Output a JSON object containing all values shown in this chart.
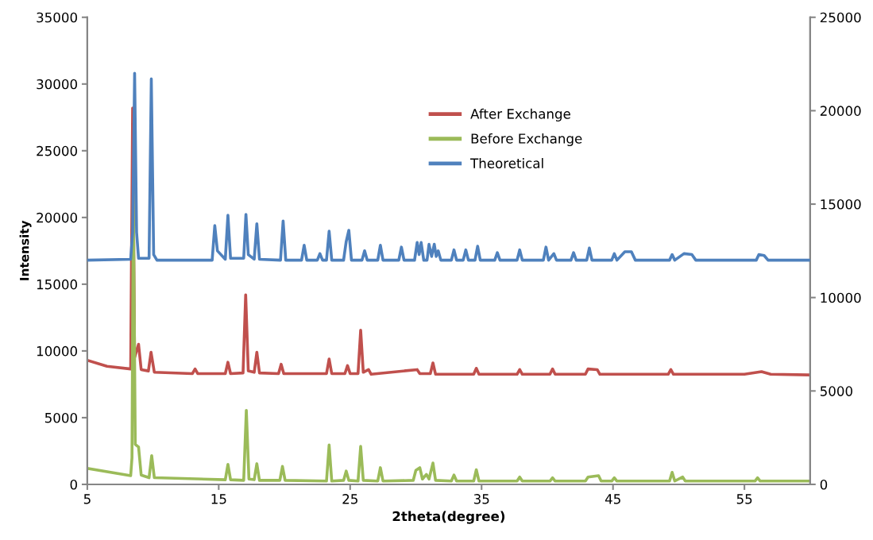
{
  "chart_data": {
    "type": "line",
    "xlabel": "2theta(degree)",
    "ylabel": "Intensity",
    "xlim": [
      5,
      60
    ],
    "xticks": [
      5,
      15,
      25,
      35,
      45,
      55
    ],
    "ylim": [
      0,
      35000
    ],
    "yticks": [
      0,
      5000,
      10000,
      15000,
      20000,
      25000,
      30000,
      35000
    ],
    "y2lim": [
      0,
      25000
    ],
    "y2ticks": [
      0,
      5000,
      10000,
      15000,
      20000,
      25000
    ],
    "legend": "top",
    "marker": "none",
    "line_style": "solid",
    "series": [
      {
        "name": "After Exchange",
        "color": "#c0504d",
        "axis": "y",
        "x": [
          5,
          6.5,
          8.3,
          8.45,
          8.6,
          8.9,
          9.1,
          9.65,
          9.85,
          10.1,
          13.0,
          13.2,
          13.4,
          15.5,
          15.7,
          15.9,
          16.85,
          17.05,
          17.25,
          17.7,
          17.9,
          18.1,
          19.55,
          19.75,
          19.95,
          23.2,
          23.4,
          23.6,
          24.6,
          24.8,
          25.0,
          25.6,
          25.8,
          26.0,
          26.4,
          26.6,
          30.1,
          30.3,
          31.1,
          31.3,
          31.5,
          34.4,
          34.6,
          34.8,
          37.7,
          37.9,
          38.1,
          40.2,
          40.4,
          40.6,
          42.9,
          43.1,
          43.8,
          44,
          49.2,
          49.4,
          49.6,
          55,
          56.3,
          57,
          60
        ],
        "values": [
          9300,
          8850,
          8650,
          28200,
          9500,
          10500,
          8600,
          8500,
          9900,
          8400,
          8300,
          8650,
          8300,
          8300,
          9150,
          8300,
          8350,
          14200,
          8500,
          8400,
          9900,
          8350,
          8300,
          9000,
          8300,
          8300,
          9400,
          8300,
          8300,
          8900,
          8300,
          8300,
          11550,
          8400,
          8600,
          8250,
          8600,
          8300,
          8300,
          9100,
          8250,
          8250,
          8700,
          8250,
          8250,
          8600,
          8250,
          8250,
          8650,
          8250,
          8250,
          8650,
          8600,
          8250,
          8250,
          8600,
          8250,
          8250,
          8450,
          8250,
          8200
        ]
      },
      {
        "name": "Before Exchange",
        "color": "#9bbb59",
        "axis": "y",
        "x": [
          5,
          8.3,
          8.4,
          8.5,
          8.65,
          8.9,
          9.1,
          9.7,
          9.9,
          10.1,
          15.5,
          15.7,
          15.9,
          16.9,
          17.1,
          17.3,
          17.7,
          17.9,
          18.1,
          19.65,
          19.85,
          20.05,
          23.2,
          23.4,
          23.6,
          24.5,
          24.7,
          24.9,
          25.6,
          25.8,
          26.0,
          27.1,
          27.3,
          27.5,
          29.8,
          30.0,
          30.3,
          30.5,
          30.8,
          31.0,
          31.3,
          31.5,
          32.7,
          32.9,
          33.1,
          34.4,
          34.6,
          34.8,
          37.7,
          37.9,
          38.1,
          40.2,
          40.4,
          40.6,
          42.9,
          43.1,
          43.9,
          44.1,
          44.9,
          45.1,
          45.3,
          49.3,
          49.5,
          49.7,
          50.3,
          50.5,
          55.8,
          56,
          56.2,
          60
        ],
        "values": [
          1200,
          650,
          2000,
          21900,
          3000,
          2800,
          700,
          500,
          2150,
          500,
          350,
          1500,
          350,
          300,
          5550,
          400,
          350,
          1550,
          300,
          300,
          1350,
          300,
          250,
          2950,
          250,
          300,
          1000,
          300,
          250,
          2850,
          300,
          250,
          1250,
          250,
          300,
          1050,
          1250,
          400,
          750,
          400,
          1600,
          300,
          250,
          700,
          250,
          250,
          1100,
          250,
          250,
          550,
          250,
          250,
          500,
          250,
          250,
          550,
          650,
          250,
          250,
          500,
          250,
          250,
          900,
          250,
          550,
          250,
          250,
          500,
          250,
          250
        ]
      },
      {
        "name": "Theoretical",
        "color": "#4f81bd",
        "axis": "y2",
        "x": [
          5,
          8.3,
          8.45,
          8.6,
          8.75,
          8.9,
          9.7,
          9.87,
          10.05,
          10.3,
          14.5,
          14.7,
          14.9,
          15.5,
          15.7,
          15.9,
          16.9,
          17.07,
          17.25,
          17.7,
          17.9,
          18.1,
          19.7,
          19.9,
          20.1,
          21.3,
          21.5,
          21.7,
          22.5,
          22.7,
          22.9,
          23.2,
          23.4,
          23.6,
          24.5,
          24.7,
          24.9,
          25.1,
          25.9,
          26.1,
          26.3,
          27.1,
          27.3,
          27.5,
          28.7,
          28.9,
          29.1,
          29.9,
          30.1,
          30.25,
          30.4,
          30.6,
          30.85,
          31.0,
          31.2,
          31.4,
          31.55,
          31.7,
          31.9,
          32.7,
          32.9,
          33.1,
          33.6,
          33.8,
          34.0,
          34.5,
          34.7,
          34.9,
          36.0,
          36.2,
          36.4,
          37.7,
          37.9,
          38.1,
          39.7,
          39.9,
          40.1,
          40.5,
          40.7,
          41.8,
          42.0,
          42.2,
          43.0,
          43.2,
          43.4,
          44.9,
          45.1,
          45.3,
          45.9,
          46.4,
          46.7,
          49.3,
          49.5,
          49.7,
          50.4,
          51.0,
          51.3,
          55.9,
          56.1,
          56.5,
          56.8,
          60
        ],
        "values": [
          12000,
          12050,
          13500,
          22000,
          13500,
          12100,
          12100,
          21700,
          12300,
          12000,
          12000,
          13850,
          12500,
          12050,
          14400,
          12100,
          12100,
          14450,
          12300,
          12050,
          13950,
          12050,
          12000,
          14100,
          12000,
          12000,
          12800,
          12000,
          12000,
          12350,
          12000,
          12000,
          13550,
          12000,
          12000,
          13000,
          13600,
          12000,
          12000,
          12500,
          12000,
          12000,
          12800,
          12000,
          12000,
          12700,
          12000,
          12000,
          12950,
          12300,
          12950,
          12000,
          12000,
          12850,
          12200,
          12850,
          12200,
          12500,
          12000,
          12000,
          12550,
          12000,
          12000,
          12550,
          12000,
          12000,
          12750,
          12000,
          12000,
          12400,
          12000,
          12000,
          12550,
          12000,
          12000,
          12700,
          12000,
          12350,
          12000,
          12000,
          12400,
          12000,
          12000,
          12650,
          12000,
          12000,
          12350,
          12000,
          12450,
          12450,
          12000,
          12000,
          12300,
          12000,
          12350,
          12300,
          12000,
          12000,
          12300,
          12250,
          12000,
          12000
        ]
      }
    ]
  }
}
